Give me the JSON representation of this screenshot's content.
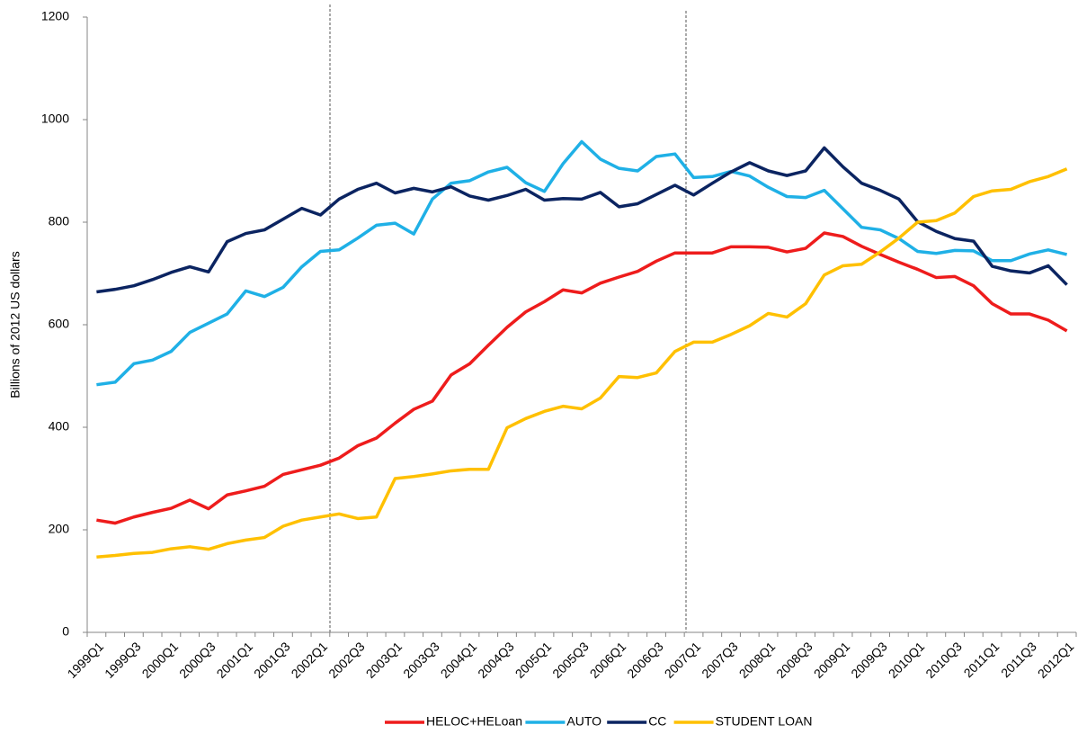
{
  "chart_data": {
    "type": "line",
    "y_label": "Billions of 2012 US dollars",
    "categories": [
      "1999Q1",
      null,
      "1999Q3",
      null,
      "2000Q1",
      null,
      "2000Q3",
      null,
      "2001Q1",
      null,
      "2001Q3",
      null,
      "2002Q1",
      null,
      "2002Q3",
      null,
      "2003Q1",
      null,
      "2003Q3",
      null,
      "2004Q1",
      null,
      "2004Q3",
      null,
      "2005Q1",
      null,
      "2005Q3",
      null,
      "2006Q1",
      null,
      "2006Q3",
      null,
      "2007Q1",
      null,
      "2007Q3",
      null,
      "2008Q1",
      null,
      "2008Q3",
      null,
      "2009Q1",
      null,
      "2009Q3",
      null,
      "2010Q1",
      null,
      "2010Q3",
      null,
      "2011Q1",
      null,
      "2011Q3",
      null,
      "2012Q1"
    ],
    "series": [
      {
        "name": "HELOC+HELoan",
        "color": "#ee1c1c",
        "values": [
          219,
          213,
          225,
          234,
          242,
          258,
          241,
          268,
          276,
          285,
          308,
          317,
          326,
          340,
          364,
          379,
          408,
          435,
          451,
          502,
          524,
          560,
          595,
          625,
          645,
          668,
          662,
          681,
          693,
          704,
          724,
          740,
          740,
          740,
          752,
          752,
          751,
          742,
          749,
          779,
          772,
          753,
          737,
          722,
          708,
          692,
          694,
          676,
          641,
          621,
          621,
          609,
          588
        ]
      },
      {
        "name": "AUTO",
        "color": "#1fb0e6",
        "values": [
          483,
          488,
          524,
          531,
          548,
          585,
          603,
          621,
          666,
          655,
          673,
          713,
          743,
          746,
          769,
          794,
          798,
          777,
          845,
          876,
          881,
          898,
          907,
          877,
          860,
          914,
          957,
          923,
          905,
          900,
          928,
          933,
          887,
          889,
          899,
          890,
          868,
          850,
          848,
          862,
          826,
          790,
          785,
          768,
          743,
          739,
          745,
          744,
          725,
          725,
          738,
          746,
          737
        ]
      },
      {
        "name": "CC",
        "color": "#0b2461",
        "values": [
          664,
          669,
          676,
          688,
          702,
          713,
          703,
          762,
          778,
          785,
          806,
          827,
          814,
          845,
          864,
          876,
          857,
          866,
          859,
          869,
          851,
          843,
          852,
          864,
          843,
          846,
          845,
          858,
          830,
          836,
          854,
          872,
          853,
          876,
          898,
          916,
          900,
          891,
          900,
          945,
          908,
          876,
          862,
          845,
          801,
          782,
          768,
          763,
          714,
          705,
          701,
          715,
          678
        ]
      },
      {
        "name": "STUDENT LOAN",
        "color": "#ffc000",
        "values": [
          147,
          150,
          154,
          156,
          163,
          167,
          162,
          173,
          180,
          185,
          207,
          219,
          225,
          231,
          222,
          225,
          300,
          304,
          309,
          315,
          318,
          318,
          399,
          417,
          431,
          441,
          436,
          457,
          499,
          497,
          506,
          548,
          566,
          566,
          581,
          598,
          622,
          615,
          641,
          697,
          715,
          718,
          742,
          769,
          800,
          803,
          818,
          850,
          861,
          864,
          879,
          889,
          904
        ]
      }
    ],
    "ylim": [
      0,
      1200
    ],
    "yticks": [
      0,
      200,
      400,
      600,
      800,
      1000,
      1200
    ],
    "grid": false,
    "legend": "bottom"
  }
}
